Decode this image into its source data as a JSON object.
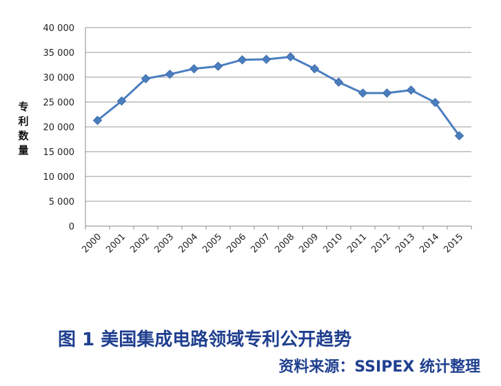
{
  "chart_data": {
    "type": "line",
    "ylabel": "专利数量",
    "xlabel": "",
    "categories": [
      "2000",
      "2001",
      "2002",
      "2003",
      "2004",
      "2005",
      "2006",
      "2007",
      "2008",
      "2009",
      "2010",
      "2011",
      "2012",
      "2013",
      "2014",
      "2015"
    ],
    "values": [
      21300,
      25200,
      29700,
      30600,
      31700,
      32200,
      33500,
      33600,
      34100,
      31700,
      29000,
      26800,
      26800,
      27400,
      24900,
      18200
    ],
    "ylim": [
      0,
      40000
    ],
    "yticks": [
      0,
      5000,
      10000,
      15000,
      20000,
      25000,
      30000,
      35000,
      40000
    ],
    "ytick_labels": [
      "0",
      "5 000",
      "10 000",
      "15 000",
      "20 000",
      "25 000",
      "30 000",
      "35 000",
      "40 000"
    ],
    "grid": true,
    "line_color": "#4a7ebf",
    "marker_color": "#4a7ebf"
  },
  "caption": "图 1  美国集成电路领域专利公开趋势",
  "source": "资料来源：SSIPEX 统计整理"
}
